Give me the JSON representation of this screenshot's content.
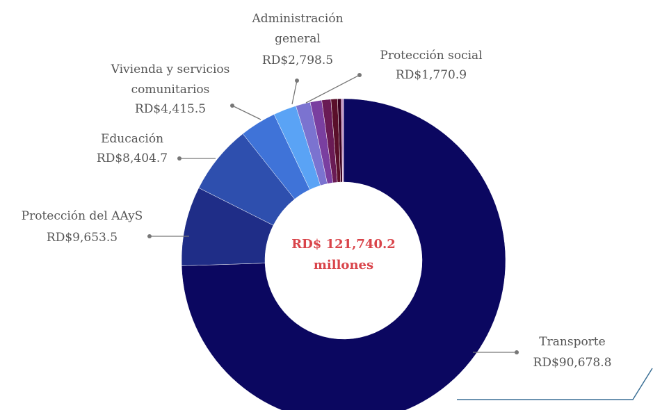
{
  "chart_data": {
    "type": "donut",
    "center_text": [
      "RD$ 121,740.2",
      "millones"
    ],
    "categories": [
      "Transporte",
      "Protección del AAyS",
      "Educación",
      "Vivienda y servicios\ncomunitarios",
      "Administración\ngeneral",
      "Protección social",
      null,
      null,
      null,
      null,
      null
    ],
    "values": [
      90678.8,
      9653.5,
      8404.7,
      4415.5,
      2798.5,
      1770.9,
      1400,
      1100,
      800,
      450,
      268.3
    ],
    "value_labels": [
      "RD$90,678.8",
      "RD$9,653.5",
      "RD$8,404.7",
      "RD$4,415.5",
      "RD$2,798.5",
      "RD$1,770.9",
      null,
      null,
      null,
      null,
      null
    ],
    "colors": [
      "#0b0760",
      "#1f2d87",
      "#2e4fae",
      "#3f73d8",
      "#5aa3f5",
      "#7b73d0",
      "#7a3fa0",
      "#6a1b55",
      "#5a0f2a",
      "#3a0020",
      "#c99ac9"
    ]
  }
}
